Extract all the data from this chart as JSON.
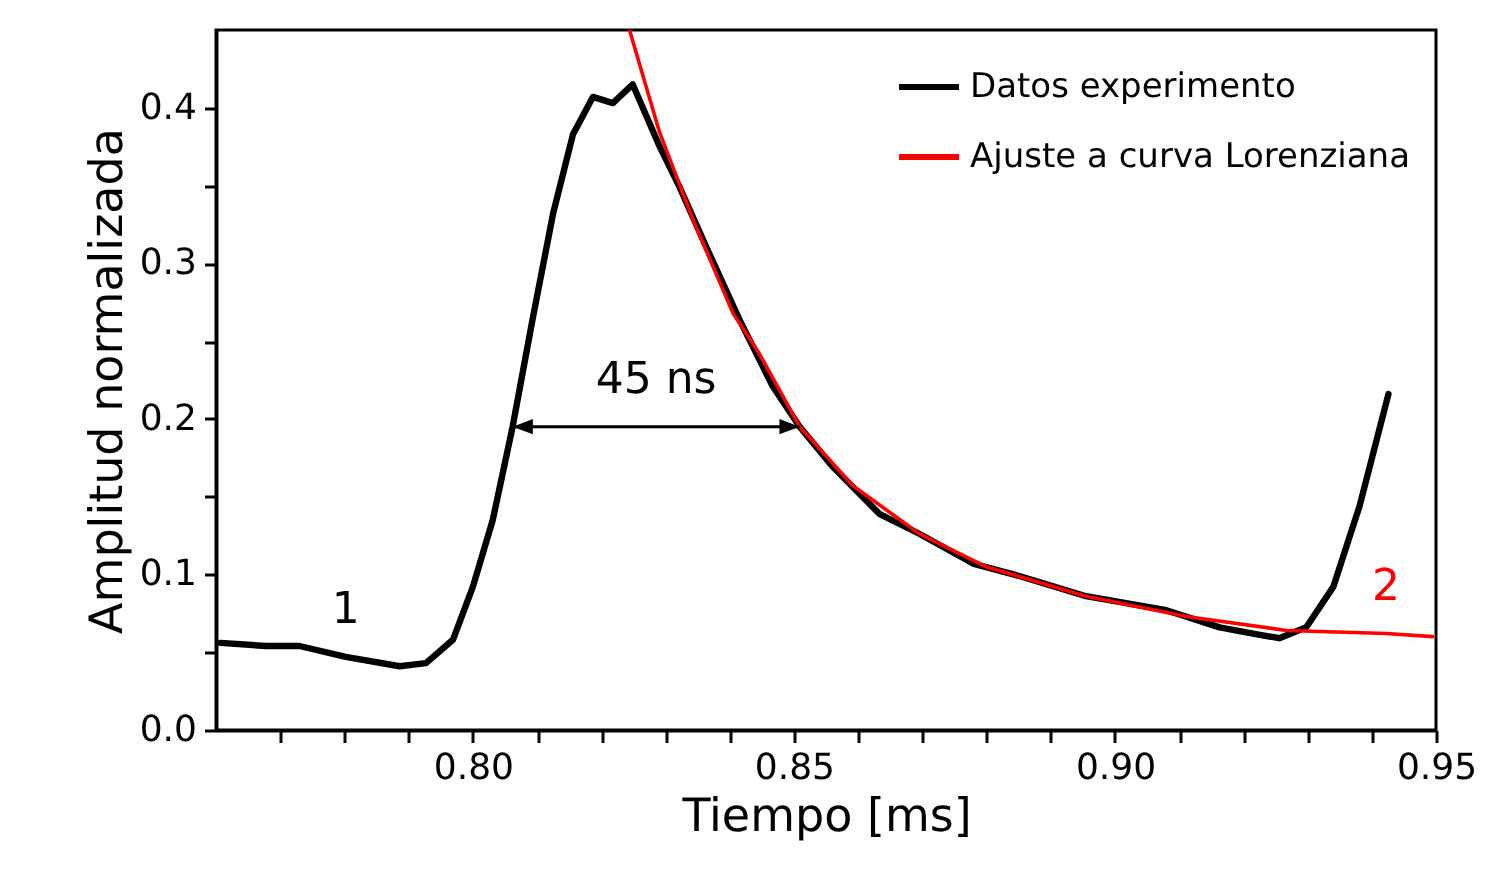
{
  "chart_data": {
    "type": "line",
    "xlabel": "Tiempo [ms]",
    "ylabel": "Amplitud normalizada",
    "xlim": [
      0.76,
      0.95
    ],
    "ylim": [
      0,
      0.45
    ],
    "xticks": [
      {
        "value": 0.77,
        "label": null
      },
      {
        "value": 0.78,
        "label": null
      },
      {
        "value": 0.79,
        "label": null
      },
      {
        "value": 0.8,
        "label": "0.80"
      },
      {
        "value": 0.81,
        "label": null
      },
      {
        "value": 0.82,
        "label": null
      },
      {
        "value": 0.83,
        "label": null
      },
      {
        "value": 0.84,
        "label": null
      },
      0.85,
      {
        "value": 0.86,
        "label": null
      },
      {
        "value": 0.87,
        "label": null
      },
      {
        "value": 0.88,
        "label": null
      },
      {
        "value": 0.89,
        "label": null
      },
      {
        "value": 0.9,
        "label": "0.90"
      },
      {
        "value": 0.91,
        "label": null
      },
      {
        "value": 0.92,
        "label": null
      },
      {
        "value": 0.93,
        "label": null
      },
      {
        "value": 0.94,
        "label": null
      },
      0.95
    ],
    "yticks": [
      {
        "value": 0,
        "label": "0.0"
      },
      {
        "value": 0.05,
        "label": null
      },
      0.1,
      {
        "value": 0.15,
        "label": null
      },
      0.2,
      {
        "value": 0.25,
        "label": null
      },
      0.3,
      {
        "value": 0.35,
        "label": null
      },
      0.4
    ],
    "grid": false,
    "legend": "top right",
    "line_style": "solid",
    "marker": "none",
    "series": [
      {
        "name": "Datos experimento",
        "color": "#000000",
        "x": [
          0.7607,
          0.7678,
          0.773,
          0.7802,
          0.7886,
          0.7927,
          0.7969,
          0.8,
          0.8031,
          0.8062,
          0.8093,
          0.8125,
          0.8156,
          0.8187,
          0.8218,
          0.8249,
          0.8291,
          0.8322,
          0.8363,
          0.8415,
          0.8467,
          0.8509,
          0.8561,
          0.8633,
          0.8696,
          0.8779,
          0.8851,
          0.8955,
          0.908,
          0.9163,
          0.9215,
          0.9256,
          0.9298,
          0.934,
          0.9381,
          0.9426
        ],
        "values": [
          0.056,
          0.054,
          0.054,
          0.047,
          0.041,
          0.043,
          0.058,
          0.092,
          0.135,
          0.195,
          0.264,
          0.332,
          0.383,
          0.407,
          0.403,
          0.415,
          0.375,
          0.349,
          0.311,
          0.264,
          0.221,
          0.195,
          0.169,
          0.139,
          0.126,
          0.107,
          0.099,
          0.086,
          0.077,
          0.066,
          0.062,
          0.059,
          0.066,
          0.092,
          0.144,
          0.216
        ]
      },
      {
        "name": "Ajuste a curva Lorenziana",
        "color": "#ff0000",
        "x": [
          0.8244,
          0.8291,
          0.8343,
          0.8405,
          0.8446,
          0.8509,
          0.8592,
          0.8696,
          0.8799,
          0.8955,
          0.9111,
          0.9267,
          0.9422,
          0.9495
        ],
        "values": [
          0.45,
          0.384,
          0.328,
          0.268,
          0.242,
          0.195,
          0.157,
          0.126,
          0.105,
          0.086,
          0.073,
          0.064,
          0.062,
          0.06
        ]
      }
    ],
    "annotations": [
      {
        "text": "45 ns",
        "x": 0.8062,
        "y": 0.195
      },
      {
        "text": "1",
        "x": 0.7802,
        "y": 0.047
      },
      {
        "text": "2",
        "x": 0.9422,
        "y": 0.062
      }
    ]
  }
}
